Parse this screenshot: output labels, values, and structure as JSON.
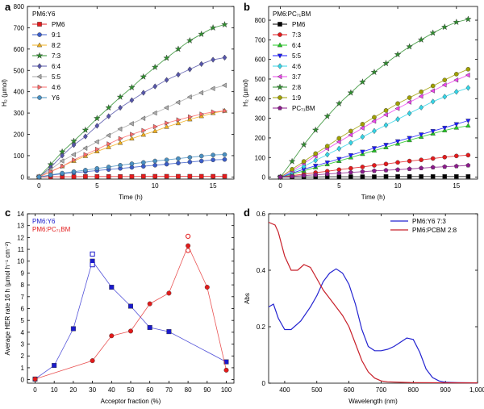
{
  "chart_data": [
    {
      "panel": "a",
      "type": "line",
      "legend_title": "PM6:Y6",
      "legend_placement": "top-left",
      "xlabel": "Time (h)",
      "ylabel": "H₂ (µmol)",
      "xlim": [
        -1,
        16.8
      ],
      "ylim": [
        -10,
        800
      ],
      "xticks": [
        0,
        5,
        10,
        15
      ],
      "yticks": [
        0,
        100,
        200,
        300,
        400,
        500,
        600,
        700,
        800
      ],
      "x": [
        0,
        1,
        2,
        3,
        4,
        5,
        6,
        7,
        8,
        9,
        10,
        11,
        12,
        13,
        14,
        15,
        16
      ],
      "series": [
        {
          "name": "PM6",
          "marker": "square",
          "color": "#e41a1c",
          "values": [
            0,
            1,
            1,
            1,
            2,
            2,
            2,
            2,
            2,
            3,
            3,
            3,
            3,
            3,
            3,
            3,
            3
          ]
        },
        {
          "name": "9:1",
          "marker": "circle",
          "color": "#3b5dc9",
          "values": [
            0,
            8,
            15,
            20,
            25,
            30,
            35,
            40,
            45,
            50,
            55,
            60,
            65,
            70,
            75,
            80,
            82
          ]
        },
        {
          "name": "8:2",
          "marker": "triangle",
          "color": "#f2b01e",
          "values": [
            0,
            25,
            50,
            75,
            98,
            120,
            140,
            160,
            180,
            198,
            215,
            235,
            252,
            270,
            285,
            300,
            310
          ]
        },
        {
          "name": "7:3",
          "marker": "star",
          "color": "#2f8f2f",
          "values": [
            0,
            58,
            118,
            168,
            220,
            275,
            325,
            375,
            420,
            470,
            515,
            558,
            600,
            640,
            670,
            700,
            715
          ]
        },
        {
          "name": "6:4",
          "marker": "diamond",
          "color": "#5555aa",
          "values": [
            0,
            45,
            100,
            150,
            190,
            240,
            285,
            325,
            360,
            395,
            425,
            455,
            480,
            505,
            530,
            550,
            560
          ]
        },
        {
          "name": "5:5",
          "marker": "triangle-left",
          "color": "#aaaaaa",
          "values": [
            0,
            35,
            75,
            105,
            135,
            165,
            195,
            225,
            250,
            275,
            300,
            325,
            350,
            375,
            395,
            415,
            430
          ]
        },
        {
          "name": "4:6",
          "marker": "triangle-right",
          "color": "#ff6b6b",
          "values": [
            0,
            25,
            50,
            80,
            105,
            130,
            155,
            180,
            200,
            218,
            236,
            253,
            268,
            282,
            295,
            305,
            310
          ]
        },
        {
          "name": "Y6",
          "marker": "circle",
          "color": "#4a90c2",
          "values": [
            0,
            10,
            18,
            25,
            32,
            40,
            47,
            55,
            62,
            68,
            75,
            80,
            86,
            92,
            98,
            103,
            105
          ]
        }
      ]
    },
    {
      "panel": "b",
      "type": "line",
      "legend_title": "PM6:PC₇₁BM",
      "legend_placement": "top-left",
      "xlabel": "Time (h)",
      "ylabel": "H₂ (µmol)",
      "xlim": [
        -1,
        16.8
      ],
      "ylim": [
        -10,
        870
      ],
      "xticks": [
        0,
        5,
        10,
        15
      ],
      "yticks": [
        0,
        100,
        200,
        300,
        400,
        500,
        600,
        700,
        800
      ],
      "x": [
        0,
        1,
        2,
        3,
        4,
        5,
        6,
        7,
        8,
        9,
        10,
        11,
        12,
        13,
        14,
        15,
        16
      ],
      "series": [
        {
          "name": "PM6",
          "marker": "square",
          "color": "#000000",
          "values": [
            0,
            1,
            1,
            1,
            2,
            2,
            2,
            2,
            2,
            3,
            3,
            3,
            3,
            3,
            3,
            3,
            3
          ]
        },
        {
          "name": "7:3",
          "marker": "circle",
          "color": "#e41a1c",
          "values": [
            0,
            8,
            15,
            23,
            30,
            38,
            45,
            52,
            60,
            67,
            75,
            82,
            88,
            95,
            102,
            108,
            112
          ]
        },
        {
          "name": "6:4",
          "marker": "triangle",
          "color": "#22cc22",
          "values": [
            0,
            15,
            32,
            50,
            65,
            82,
            100,
            118,
            135,
            152,
            170,
            188,
            205,
            222,
            238,
            252,
            262
          ]
        },
        {
          "name": "5:5",
          "marker": "triangle-down",
          "color": "#1a1aff",
          "values": [
            0,
            20,
            40,
            58,
            75,
            93,
            112,
            130,
            148,
            165,
            183,
            200,
            218,
            235,
            252,
            270,
            288
          ]
        },
        {
          "name": "4:6",
          "marker": "diamond",
          "color": "#33d6e8",
          "values": [
            0,
            25,
            55,
            85,
            115,
            145,
            175,
            205,
            235,
            265,
            295,
            325,
            355,
            385,
            410,
            435,
            455
          ]
        },
        {
          "name": "3:7",
          "marker": "triangle-left",
          "color": "#ee44ee",
          "values": [
            0,
            32,
            70,
            108,
            145,
            180,
            215,
            250,
            285,
            318,
            350,
            382,
            412,
            440,
            470,
            495,
            520
          ]
        },
        {
          "name": "2:8",
          "marker": "star",
          "color": "#2f8f2f",
          "values": [
            0,
            80,
            165,
            240,
            310,
            375,
            430,
            485,
            535,
            580,
            625,
            665,
            700,
            735,
            765,
            790,
            805
          ]
        },
        {
          "name": "1:9",
          "marker": "circle",
          "color": "#a0a000",
          "values": [
            0,
            40,
            80,
            120,
            158,
            198,
            235,
            270,
            305,
            340,
            375,
            405,
            435,
            465,
            495,
            525,
            550
          ]
        },
        {
          "name": "PC₇₁BM",
          "marker": "pentagon",
          "color": "#8b1a8b",
          "values": [
            0,
            4,
            8,
            12,
            16,
            20,
            24,
            28,
            32,
            35,
            38,
            42,
            46,
            50,
            53,
            56,
            60
          ]
        }
      ]
    },
    {
      "panel": "c",
      "type": "scatter",
      "xlabel": "Acceptor fraction (%)",
      "ylabel": "Average HER rate 16 h (µmol h⁻¹ cm⁻²)",
      "xlim": [
        -4,
        104
      ],
      "ylim": [
        -0.3,
        14
      ],
      "xticks": [
        0,
        10,
        20,
        30,
        40,
        50,
        60,
        70,
        80,
        90,
        100
      ],
      "yticks": [
        0,
        1,
        2,
        3,
        4,
        5,
        6,
        7,
        8,
        9,
        10,
        11,
        12,
        13,
        14
      ],
      "legend_placement": "top-left",
      "series": [
        {
          "name": "PM6:Y6",
          "marker": "square",
          "color": "#1a1acc",
          "x": [
            0,
            10,
            20,
            30,
            40,
            50,
            60,
            70,
            100
          ],
          "values": [
            0.05,
            1.2,
            4.3,
            10.0,
            7.8,
            6.2,
            4.4,
            4.05,
            1.5
          ],
          "open_points": [
            [
              30,
              10.6
            ],
            [
              30,
              9.7
            ]
          ]
        },
        {
          "name": "PM6:PC₇₁BM",
          "marker": "circle",
          "color": "#e21a1a",
          "x": [
            0,
            30,
            40,
            50,
            60,
            70,
            80,
            90,
            100
          ],
          "values": [
            0.05,
            1.6,
            3.7,
            4.1,
            6.4,
            7.3,
            11.3,
            7.8,
            0.8
          ],
          "open_points": [
            [
              80,
              12.1
            ],
            [
              80,
              10.9
            ]
          ]
        }
      ]
    },
    {
      "panel": "d",
      "type": "line",
      "xlabel": "Wavelength (nm)",
      "ylabel": "Abs",
      "xlim": [
        350,
        1000
      ],
      "ylim": [
        0,
        0.6
      ],
      "xticks": [
        400,
        500,
        600,
        700,
        800,
        900,
        1000
      ],
      "xtick_labels": [
        "400",
        "500",
        "600",
        "700",
        "800",
        "900",
        "1,000"
      ],
      "yticks": [
        0,
        0.2,
        0.4,
        0.6
      ],
      "ytick_labels": [
        "0",
        "0.2",
        "0.4",
        "0.6"
      ],
      "legend_placement": "top-right",
      "series": [
        {
          "name": "PM6:Y6 7:3",
          "color": "#2323d0",
          "x": [
            350,
            365,
            380,
            400,
            420,
            450,
            480,
            500,
            520,
            540,
            560,
            580,
            600,
            620,
            640,
            660,
            680,
            700,
            720,
            740,
            760,
            780,
            800,
            820,
            840,
            860,
            880,
            900,
            940,
            1000
          ],
          "values": [
            0.27,
            0.28,
            0.23,
            0.19,
            0.19,
            0.22,
            0.27,
            0.31,
            0.36,
            0.39,
            0.405,
            0.39,
            0.35,
            0.28,
            0.19,
            0.13,
            0.115,
            0.115,
            0.12,
            0.13,
            0.145,
            0.16,
            0.155,
            0.11,
            0.05,
            0.02,
            0.008,
            0.003,
            0.002,
            0.001
          ]
        },
        {
          "name": "PM6:PCBM 2:8",
          "color": "#c8202a",
          "x": [
            350,
            370,
            380,
            400,
            420,
            440,
            460,
            480,
            500,
            520,
            540,
            560,
            580,
            600,
            620,
            640,
            660,
            680,
            700,
            720,
            760,
            800,
            1000
          ],
          "values": [
            0.57,
            0.56,
            0.535,
            0.45,
            0.4,
            0.4,
            0.42,
            0.41,
            0.37,
            0.33,
            0.3,
            0.27,
            0.24,
            0.2,
            0.14,
            0.08,
            0.04,
            0.018,
            0.008,
            0.005,
            0.003,
            0.002,
            0.001
          ]
        }
      ]
    }
  ],
  "panel_labels": [
    "a",
    "b",
    "c",
    "d"
  ]
}
